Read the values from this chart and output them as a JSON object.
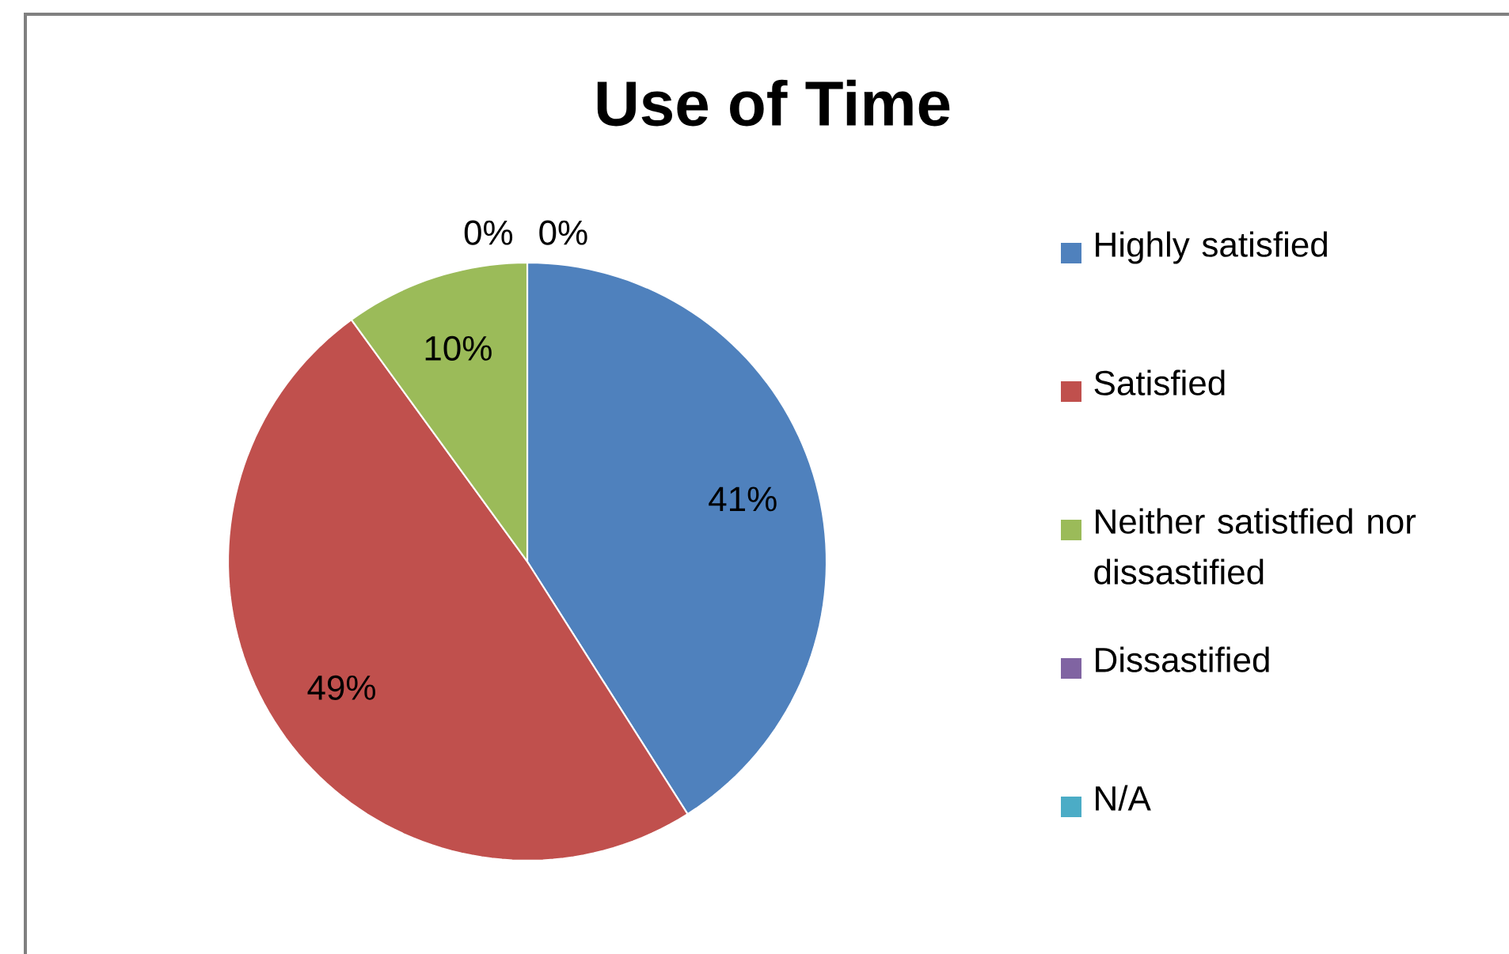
{
  "chart_data": {
    "type": "pie",
    "title": "Use of Time",
    "categories": [
      "Highly satisfied",
      "Satisfied",
      "Neither satistfied nor dissastified",
      "Dissastified",
      "N/A"
    ],
    "values": [
      41,
      49,
      10,
      0,
      0
    ],
    "colors": [
      "#4f81bd",
      "#c0504d",
      "#9bbb59",
      "#8064a2",
      "#4bacc6"
    ],
    "value_labels": [
      "41%",
      "49%",
      "10%",
      "0%",
      "0%"
    ],
    "legend": "right"
  }
}
